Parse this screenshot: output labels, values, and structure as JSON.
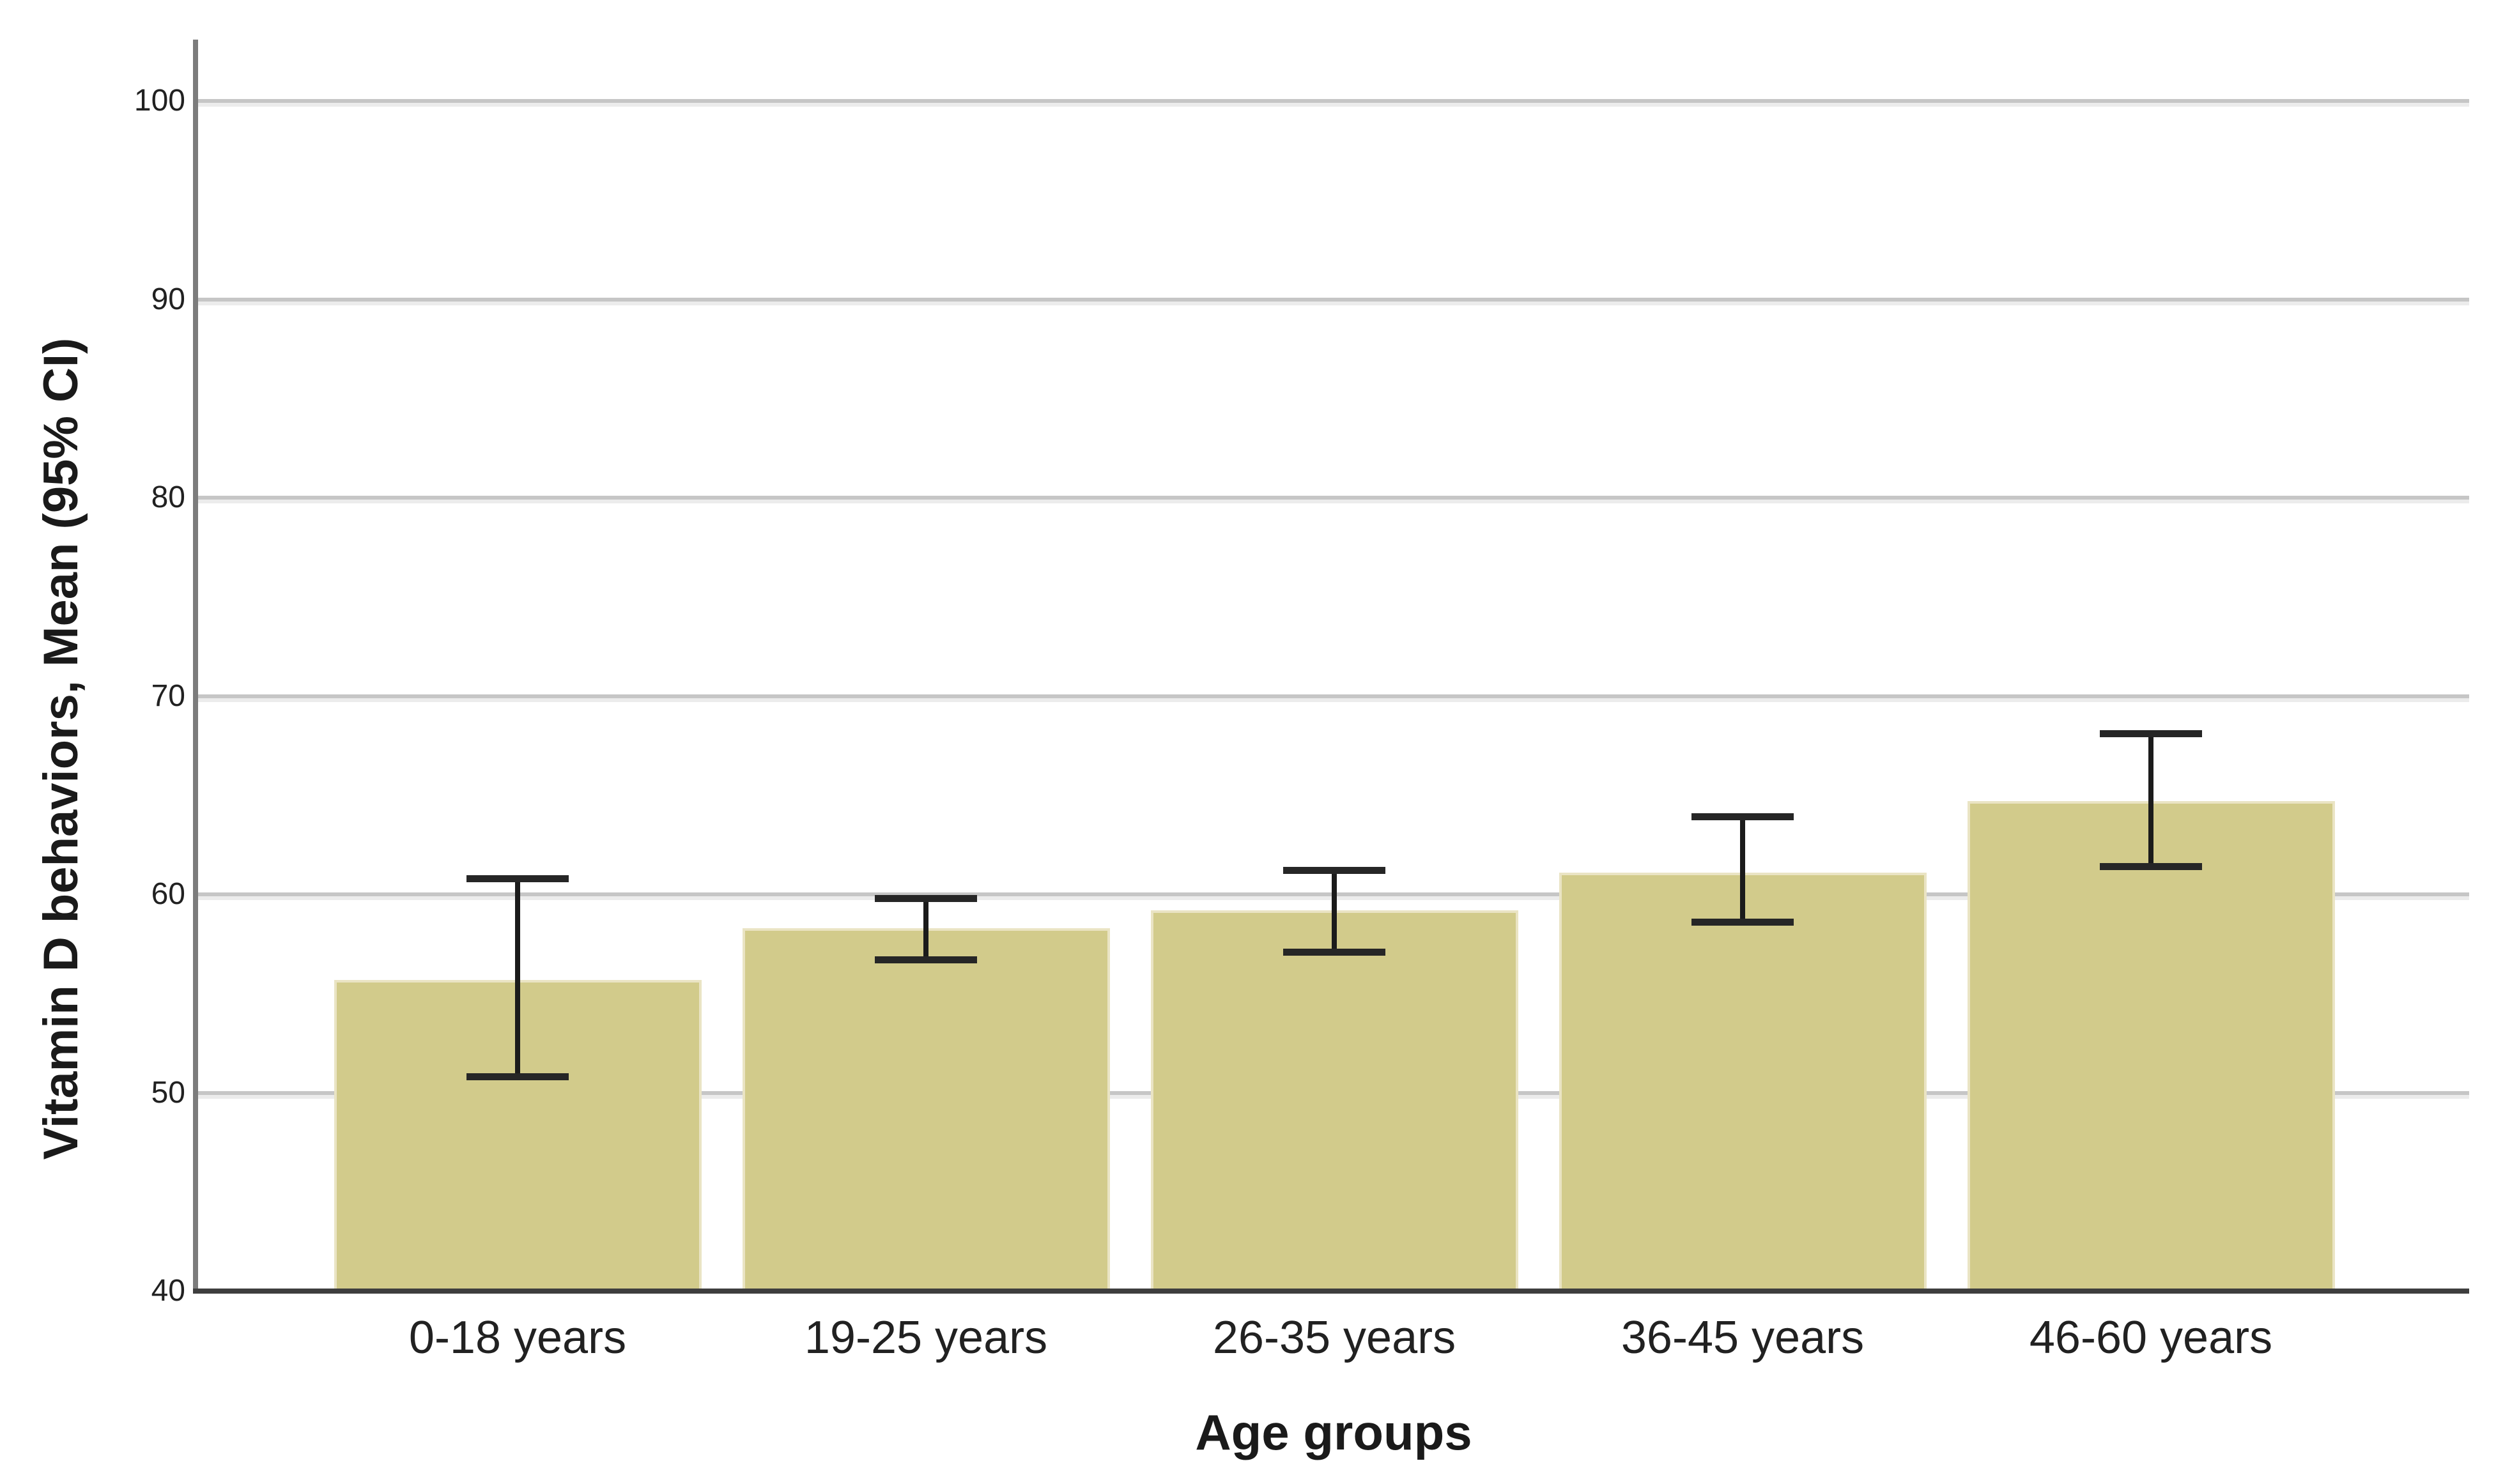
{
  "figure": {
    "background": "#ffffff"
  },
  "chart_data": {
    "type": "bar",
    "title": "",
    "xlabel": "Age groups",
    "ylabel": "Vitamin D behaviors, Mean (95% CI)",
    "categories": [
      "0-18 years",
      "19-25 years",
      "26-35 years",
      "36-45 years",
      "46-60 years"
    ],
    "series": [
      {
        "name": "Vitamin D behaviors mean",
        "values": [
          55.7,
          58.3,
          59.2,
          61.1,
          64.7
        ]
      }
    ],
    "error_bars": {
      "kind": "95% CI",
      "low": [
        50.8,
        56.7,
        57.1,
        58.6,
        61.4
      ],
      "high": [
        60.8,
        59.8,
        61.2,
        63.9,
        68.1
      ]
    },
    "yticks": [
      40,
      50,
      60,
      70,
      80,
      90,
      100
    ],
    "ylim": [
      40,
      103
    ],
    "grid": true,
    "legend_position": "none",
    "colors": {
      "bar_fill": "#d2cb8b",
      "bar_edge": "#eae4c4",
      "gridline": "#c6c6c6",
      "axis_spine": "#7c7c7c",
      "baseline": "#3e3e3e",
      "error_bar": "#1b1b1b",
      "text": "#212121"
    }
  }
}
